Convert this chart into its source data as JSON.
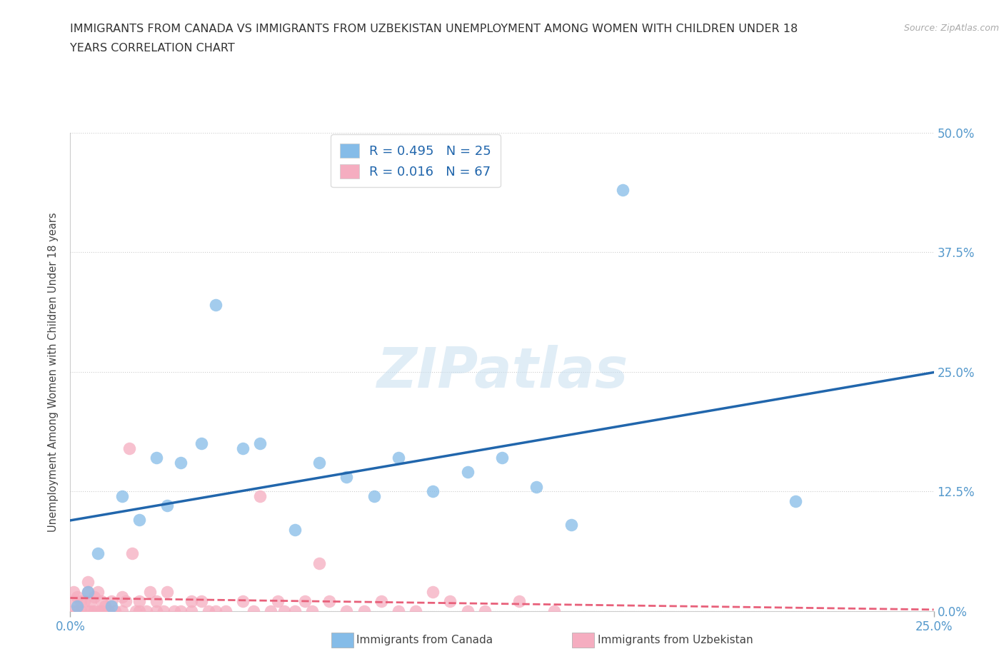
{
  "title_line1": "IMMIGRANTS FROM CANADA VS IMMIGRANTS FROM UZBEKISTAN UNEMPLOYMENT AMONG WOMEN WITH CHILDREN UNDER 18",
  "title_line2": "YEARS CORRELATION CHART",
  "source": "Source: ZipAtlas.com",
  "ylabel": "Unemployment Among Women with Children Under 18 years",
  "xlim": [
    0.0,
    0.25
  ],
  "ylim": [
    0.0,
    0.5
  ],
  "ytick_labels": [
    "0.0%",
    "12.5%",
    "25.0%",
    "37.5%",
    "50.0%"
  ],
  "ytick_positions": [
    0.0,
    0.125,
    0.25,
    0.375,
    0.5
  ],
  "xtick_labels": [
    "0.0%",
    "25.0%"
  ],
  "xtick_positions": [
    0.0,
    0.25
  ],
  "canada_R": 0.495,
  "canada_N": 25,
  "uzbekistan_R": 0.016,
  "uzbekistan_N": 67,
  "canada_color": "#85bce8",
  "uzbekistan_color": "#f5adc0",
  "canada_line_color": "#2166ac",
  "uzbekistan_line_color": "#e8607a",
  "watermark": "ZIPatlas",
  "canada_x": [
    0.002,
    0.005,
    0.008,
    0.012,
    0.015,
    0.02,
    0.025,
    0.028,
    0.032,
    0.038,
    0.042,
    0.05,
    0.055,
    0.065,
    0.072,
    0.08,
    0.088,
    0.095,
    0.105,
    0.115,
    0.125,
    0.135,
    0.145,
    0.16,
    0.21
  ],
  "canada_y": [
    0.005,
    0.02,
    0.06,
    0.005,
    0.12,
    0.095,
    0.16,
    0.11,
    0.155,
    0.175,
    0.32,
    0.17,
    0.175,
    0.085,
    0.155,
    0.14,
    0.12,
    0.16,
    0.125,
    0.145,
    0.16,
    0.13,
    0.09,
    0.44,
    0.115
  ],
  "uzbekistan_x": [
    0.001,
    0.001,
    0.001,
    0.002,
    0.002,
    0.003,
    0.003,
    0.004,
    0.005,
    0.005,
    0.005,
    0.006,
    0.006,
    0.007,
    0.007,
    0.008,
    0.008,
    0.009,
    0.009,
    0.01,
    0.011,
    0.012,
    0.013,
    0.015,
    0.015,
    0.016,
    0.017,
    0.018,
    0.019,
    0.02,
    0.02,
    0.022,
    0.023,
    0.025,
    0.025,
    0.027,
    0.028,
    0.03,
    0.032,
    0.035,
    0.035,
    0.038,
    0.04,
    0.042,
    0.045,
    0.05,
    0.053,
    0.055,
    0.058,
    0.06,
    0.062,
    0.065,
    0.068,
    0.07,
    0.072,
    0.075,
    0.08,
    0.085,
    0.09,
    0.095,
    0.1,
    0.105,
    0.11,
    0.115,
    0.12,
    0.13,
    0.14
  ],
  "uzbekistan_y": [
    0.0,
    0.01,
    0.02,
    0.0,
    0.015,
    0.0,
    0.01,
    0.01,
    0.0,
    0.02,
    0.03,
    0.0,
    0.01,
    0.0,
    0.015,
    0.0,
    0.02,
    0.0,
    0.01,
    0.005,
    0.0,
    0.01,
    0.0,
    0.0,
    0.015,
    0.01,
    0.17,
    0.06,
    0.0,
    0.0,
    0.01,
    0.0,
    0.02,
    0.0,
    0.01,
    0.0,
    0.02,
    0.0,
    0.0,
    0.0,
    0.01,
    0.01,
    0.0,
    0.0,
    0.0,
    0.01,
    0.0,
    0.12,
    0.0,
    0.01,
    0.0,
    0.0,
    0.01,
    0.0,
    0.05,
    0.01,
    0.0,
    0.0,
    0.01,
    0.0,
    0.0,
    0.02,
    0.01,
    0.0,
    0.0,
    0.01,
    0.0
  ]
}
